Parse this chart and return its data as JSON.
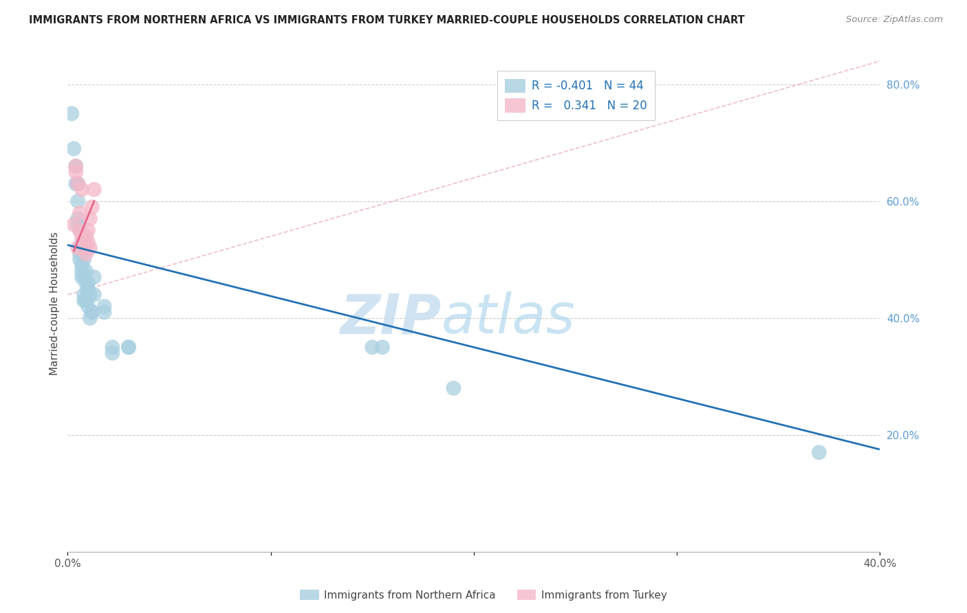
{
  "title": "IMMIGRANTS FROM NORTHERN AFRICA VS IMMIGRANTS FROM TURKEY MARRIED-COUPLE HOUSEHOLDS CORRELATION CHART",
  "source": "Source: ZipAtlas.com",
  "ylabel": "Married-couple Households",
  "xlim": [
    0.0,
    0.4
  ],
  "ylim": [
    0.0,
    0.85
  ],
  "yticks_right": [
    0.2,
    0.4,
    0.6,
    0.8
  ],
  "ytick_labels_right": [
    "20.0%",
    "40.0%",
    "60.0%",
    "80.0%"
  ],
  "legend_blue_r": "-0.401",
  "legend_blue_n": "44",
  "legend_pink_r": "0.341",
  "legend_pink_n": "20",
  "watermark_zip": "ZIP",
  "watermark_atlas": "atlas",
  "blue_color": "#a8cfe0",
  "pink_color": "#f4b8c8",
  "blue_line_color": "#2171b5",
  "pink_line_color": "#e8648a",
  "dashed_line_color": "#e8a0b0",
  "right_axis_color": "#5b9bd5",
  "grid_color": "#cccccc",
  "blue_scatter": [
    [
      0.002,
      0.75
    ],
    [
      0.003,
      0.69
    ],
    [
      0.004,
      0.66
    ],
    [
      0.004,
      0.63
    ],
    [
      0.005,
      0.6
    ],
    [
      0.005,
      0.63
    ],
    [
      0.005,
      0.56
    ],
    [
      0.005,
      0.57
    ],
    [
      0.006,
      0.55
    ],
    [
      0.006,
      0.52
    ],
    [
      0.006,
      0.51
    ],
    [
      0.006,
      0.5
    ],
    [
      0.007,
      0.53
    ],
    [
      0.007,
      0.49
    ],
    [
      0.007,
      0.48
    ],
    [
      0.007,
      0.47
    ],
    [
      0.008,
      0.5
    ],
    [
      0.008,
      0.47
    ],
    [
      0.008,
      0.44
    ],
    [
      0.008,
      0.43
    ],
    [
      0.009,
      0.48
    ],
    [
      0.009,
      0.46
    ],
    [
      0.009,
      0.43
    ],
    [
      0.009,
      0.43
    ],
    [
      0.01,
      0.46
    ],
    [
      0.01,
      0.45
    ],
    [
      0.01,
      0.44
    ],
    [
      0.01,
      0.42
    ],
    [
      0.011,
      0.44
    ],
    [
      0.011,
      0.4
    ],
    [
      0.012,
      0.41
    ],
    [
      0.012,
      0.41
    ],
    [
      0.013,
      0.47
    ],
    [
      0.013,
      0.44
    ],
    [
      0.018,
      0.42
    ],
    [
      0.018,
      0.41
    ],
    [
      0.022,
      0.35
    ],
    [
      0.022,
      0.34
    ],
    [
      0.03,
      0.35
    ],
    [
      0.03,
      0.35
    ],
    [
      0.15,
      0.35
    ],
    [
      0.155,
      0.35
    ],
    [
      0.19,
      0.28
    ],
    [
      0.37,
      0.17
    ]
  ],
  "pink_scatter": [
    [
      0.003,
      0.56
    ],
    [
      0.004,
      0.66
    ],
    [
      0.004,
      0.65
    ],
    [
      0.005,
      0.52
    ],
    [
      0.005,
      0.63
    ],
    [
      0.006,
      0.58
    ],
    [
      0.006,
      0.55
    ],
    [
      0.007,
      0.62
    ],
    [
      0.007,
      0.54
    ],
    [
      0.008,
      0.52
    ],
    [
      0.008,
      0.53
    ],
    [
      0.009,
      0.52
    ],
    [
      0.009,
      0.54
    ],
    [
      0.009,
      0.51
    ],
    [
      0.01,
      0.55
    ],
    [
      0.01,
      0.53
    ],
    [
      0.011,
      0.57
    ],
    [
      0.011,
      0.52
    ],
    [
      0.012,
      0.59
    ],
    [
      0.013,
      0.62
    ]
  ],
  "blue_line_x": [
    0.0,
    0.4
  ],
  "blue_line_y": [
    0.525,
    0.175
  ],
  "pink_line_x": [
    0.003,
    0.013
  ],
  "pink_line_y": [
    0.515,
    0.6
  ],
  "dashed_line_x": [
    0.0,
    0.4
  ],
  "dashed_line_y": [
    0.44,
    0.84
  ]
}
